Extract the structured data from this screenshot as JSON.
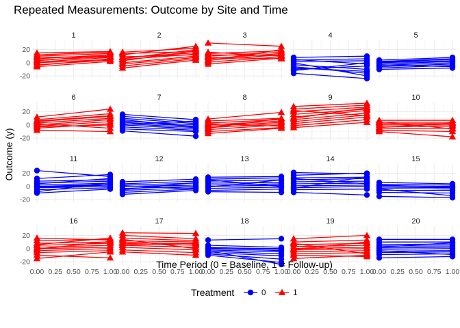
{
  "chart_data": {
    "type": "line",
    "title": "Repeated Measurements: Outcome by Site and Time",
    "xlabel": "Time Period (0 = Baseline, 1 = Follow-up)",
    "ylabel": "Outcome (y)",
    "x_ticks": [
      "0.00",
      "0.25",
      "0.50",
      "0.75",
      "1.00"
    ],
    "y_ticks": [
      "-20",
      "0",
      "20"
    ],
    "xlim": [
      0,
      1
    ],
    "ylim": [
      -24,
      34
    ],
    "grid": true,
    "legend": {
      "title": "Treatment",
      "position": "bottom",
      "entries": [
        {
          "label": "0",
          "color": "#0000FF",
          "shape": "circle"
        },
        {
          "label": "1",
          "color": "#FF0000",
          "shape": "triangle"
        }
      ]
    },
    "panels": [
      {
        "site": "1",
        "treatment": 1,
        "lines": [
          [
            15,
            17
          ],
          [
            10,
            14
          ],
          [
            6,
            12
          ],
          [
            4,
            9
          ],
          [
            1,
            8
          ],
          [
            -3,
            4
          ],
          [
            -6,
            2
          ],
          [
            0,
            5
          ],
          [
            8,
            10
          ],
          [
            3,
            12
          ],
          [
            -4,
            6
          ],
          [
            12,
            16
          ]
        ]
      },
      {
        "site": "2",
        "treatment": 1,
        "lines": [
          [
            16,
            22
          ],
          [
            12,
            25
          ],
          [
            8,
            15
          ],
          [
            5,
            13
          ],
          [
            0,
            10
          ],
          [
            -5,
            6
          ],
          [
            -8,
            4
          ],
          [
            3,
            18
          ],
          [
            9,
            12
          ],
          [
            -2,
            8
          ],
          [
            6,
            20
          ],
          [
            14,
            17
          ]
        ]
      },
      {
        "site": "3",
        "treatment": 1,
        "lines": [
          [
            30,
            25
          ],
          [
            14,
            18
          ],
          [
            10,
            16
          ],
          [
            6,
            14
          ],
          [
            4,
            12
          ],
          [
            1,
            9
          ],
          [
            8,
            6
          ],
          [
            12,
            11
          ],
          [
            3,
            20
          ],
          [
            -2,
            7
          ],
          [
            16,
            10
          ]
        ]
      },
      {
        "site": "4",
        "treatment": 0,
        "lines": [
          [
            8,
            10
          ],
          [
            5,
            -2
          ],
          [
            2,
            3
          ],
          [
            -3,
            -10
          ],
          [
            -6,
            -16
          ],
          [
            -10,
            -5
          ],
          [
            -16,
            -24
          ],
          [
            -12,
            0
          ],
          [
            0,
            -20
          ],
          [
            4,
            6
          ],
          [
            -8,
            -13
          ]
        ]
      },
      {
        "site": "5",
        "treatment": 0,
        "lines": [
          [
            4,
            8
          ],
          [
            2,
            6
          ],
          [
            0,
            3
          ],
          [
            -2,
            2
          ],
          [
            -4,
            0
          ],
          [
            -6,
            -2
          ],
          [
            -8,
            -4
          ],
          [
            -10,
            -8
          ],
          [
            1,
            5
          ],
          [
            -3,
            -6
          ]
        ]
      },
      {
        "site": "6",
        "treatment": 1,
        "lines": [
          [
            12,
            24
          ],
          [
            8,
            17
          ],
          [
            5,
            13
          ],
          [
            3,
            10
          ],
          [
            0,
            8
          ],
          [
            -2,
            5
          ],
          [
            -5,
            2
          ],
          [
            -8,
            -10
          ],
          [
            -3,
            0
          ],
          [
            6,
            14
          ],
          [
            2,
            -5
          ]
        ]
      },
      {
        "site": "7",
        "treatment": 0,
        "lines": [
          [
            16,
            8
          ],
          [
            13,
            4
          ],
          [
            10,
            2
          ],
          [
            6,
            0
          ],
          [
            4,
            -2
          ],
          [
            2,
            -4
          ],
          [
            0,
            -6
          ],
          [
            -3,
            -8
          ],
          [
            -6,
            -10
          ],
          [
            -9,
            -17
          ],
          [
            8,
            -3
          ],
          [
            1,
            6
          ]
        ]
      },
      {
        "site": "8",
        "treatment": 1,
        "lines": [
          [
            9,
            19
          ],
          [
            6,
            10
          ],
          [
            3,
            8
          ],
          [
            0,
            6
          ],
          [
            -2,
            4
          ],
          [
            -4,
            2
          ],
          [
            -7,
            0
          ],
          [
            -10,
            -4
          ],
          [
            -13,
            -5
          ],
          [
            -5,
            10
          ],
          [
            2,
            -2
          ]
        ]
      },
      {
        "site": "9",
        "treatment": 1,
        "lines": [
          [
            28,
            33
          ],
          [
            24,
            30
          ],
          [
            20,
            27
          ],
          [
            16,
            24
          ],
          [
            12,
            22
          ],
          [
            8,
            18
          ],
          [
            5,
            15
          ],
          [
            2,
            12
          ],
          [
            -1,
            8
          ],
          [
            -4,
            4
          ],
          [
            10,
            26
          ],
          [
            22,
            14
          ]
        ]
      },
      {
        "site": "10",
        "treatment": 1,
        "lines": [
          [
            7,
            7
          ],
          [
            4,
            4
          ],
          [
            2,
            2
          ],
          [
            0,
            0
          ],
          [
            -3,
            -2
          ],
          [
            -6,
            -5
          ],
          [
            -8,
            -10
          ],
          [
            -10,
            -18
          ],
          [
            -4,
            3
          ],
          [
            5,
            -6
          ]
        ]
      },
      {
        "site": "11",
        "treatment": 0,
        "lines": [
          [
            24,
            15
          ],
          [
            12,
            18
          ],
          [
            8,
            10
          ],
          [
            5,
            8
          ],
          [
            2,
            5
          ],
          [
            0,
            3
          ],
          [
            -2,
            0
          ],
          [
            -5,
            -2
          ],
          [
            -8,
            6
          ],
          [
            -10,
            -4
          ],
          [
            4,
            12
          ],
          [
            -1,
            2
          ]
        ]
      },
      {
        "site": "12",
        "treatment": 0,
        "lines": [
          [
            7,
            11
          ],
          [
            4,
            8
          ],
          [
            2,
            5
          ],
          [
            0,
            2
          ],
          [
            -3,
            0
          ],
          [
            -6,
            -2
          ],
          [
            -9,
            -4
          ],
          [
            -12,
            -6
          ],
          [
            -5,
            6
          ],
          [
            1,
            -3
          ]
        ]
      },
      {
        "site": "13",
        "treatment": 0,
        "lines": [
          [
            14,
            15
          ],
          [
            11,
            13
          ],
          [
            8,
            10
          ],
          [
            5,
            6
          ],
          [
            2,
            4
          ],
          [
            0,
            2
          ],
          [
            -3,
            -1
          ],
          [
            -6,
            -4
          ],
          [
            -8,
            -9
          ],
          [
            10,
            0
          ],
          [
            -1,
            10
          ]
        ]
      },
      {
        "site": "14",
        "treatment": 0,
        "lines": [
          [
            21,
            19
          ],
          [
            17,
            20
          ],
          [
            13,
            14
          ],
          [
            10,
            12
          ],
          [
            7,
            8
          ],
          [
            4,
            5
          ],
          [
            1,
            2
          ],
          [
            -2,
            0
          ],
          [
            -5,
            -4
          ],
          [
            -9,
            -13
          ],
          [
            12,
            4
          ],
          [
            -3,
            15
          ]
        ]
      },
      {
        "site": "15",
        "treatment": 0,
        "lines": [
          [
            6,
            4
          ],
          [
            3,
            2
          ],
          [
            1,
            0
          ],
          [
            -1,
            -2
          ],
          [
            -3,
            -4
          ],
          [
            -6,
            -6
          ],
          [
            -9,
            -10
          ],
          [
            -15,
            -17
          ],
          [
            -4,
            -14
          ],
          [
            2,
            -1
          ]
        ]
      },
      {
        "site": "16",
        "treatment": 1,
        "lines": [
          [
            16,
            13
          ],
          [
            12,
            14
          ],
          [
            8,
            10
          ],
          [
            5,
            8
          ],
          [
            2,
            5
          ],
          [
            0,
            2
          ],
          [
            -3,
            0
          ],
          [
            -6,
            -3
          ],
          [
            -10,
            -14
          ],
          [
            -15,
            -5
          ],
          [
            6,
            16
          ],
          [
            -1,
            11
          ]
        ]
      },
      {
        "site": "17",
        "treatment": 1,
        "lines": [
          [
            24,
            23
          ],
          [
            20,
            15
          ],
          [
            16,
            12
          ],
          [
            12,
            10
          ],
          [
            10,
            7
          ],
          [
            8,
            5
          ],
          [
            5,
            2
          ],
          [
            2,
            -2
          ],
          [
            -2,
            -6
          ],
          [
            -5,
            -10
          ],
          [
            14,
            0
          ],
          [
            6,
            8
          ]
        ]
      },
      {
        "site": "18",
        "treatment": 0,
        "lines": [
          [
            13,
            15
          ],
          [
            5,
            2
          ],
          [
            2,
            -1
          ],
          [
            0,
            -3
          ],
          [
            -2,
            -5
          ],
          [
            -4,
            -8
          ],
          [
            -6,
            -11
          ],
          [
            -8,
            -16
          ],
          [
            -10,
            -21
          ],
          [
            -3,
            -24
          ],
          [
            1,
            0
          ]
        ]
      },
      {
        "site": "19",
        "treatment": 1,
        "lines": [
          [
            15,
            20
          ],
          [
            10,
            13
          ],
          [
            6,
            8
          ],
          [
            3,
            5
          ],
          [
            0,
            2
          ],
          [
            -2,
            0
          ],
          [
            -5,
            -3
          ],
          [
            -8,
            -6
          ],
          [
            -10,
            -12
          ],
          [
            -15,
            -10
          ],
          [
            8,
            -8
          ],
          [
            -1,
            10
          ]
        ]
      },
      {
        "site": "20",
        "treatment": 0,
        "lines": [
          [
            14,
            14
          ],
          [
            10,
            10
          ],
          [
            6,
            7
          ],
          [
            4,
            4
          ],
          [
            1,
            2
          ],
          [
            -1,
            0
          ],
          [
            -4,
            -3
          ],
          [
            -6,
            -5
          ],
          [
            -9,
            -8
          ],
          [
            -14,
            -12
          ],
          [
            2,
            9
          ],
          [
            -3,
            -9
          ]
        ]
      }
    ]
  }
}
